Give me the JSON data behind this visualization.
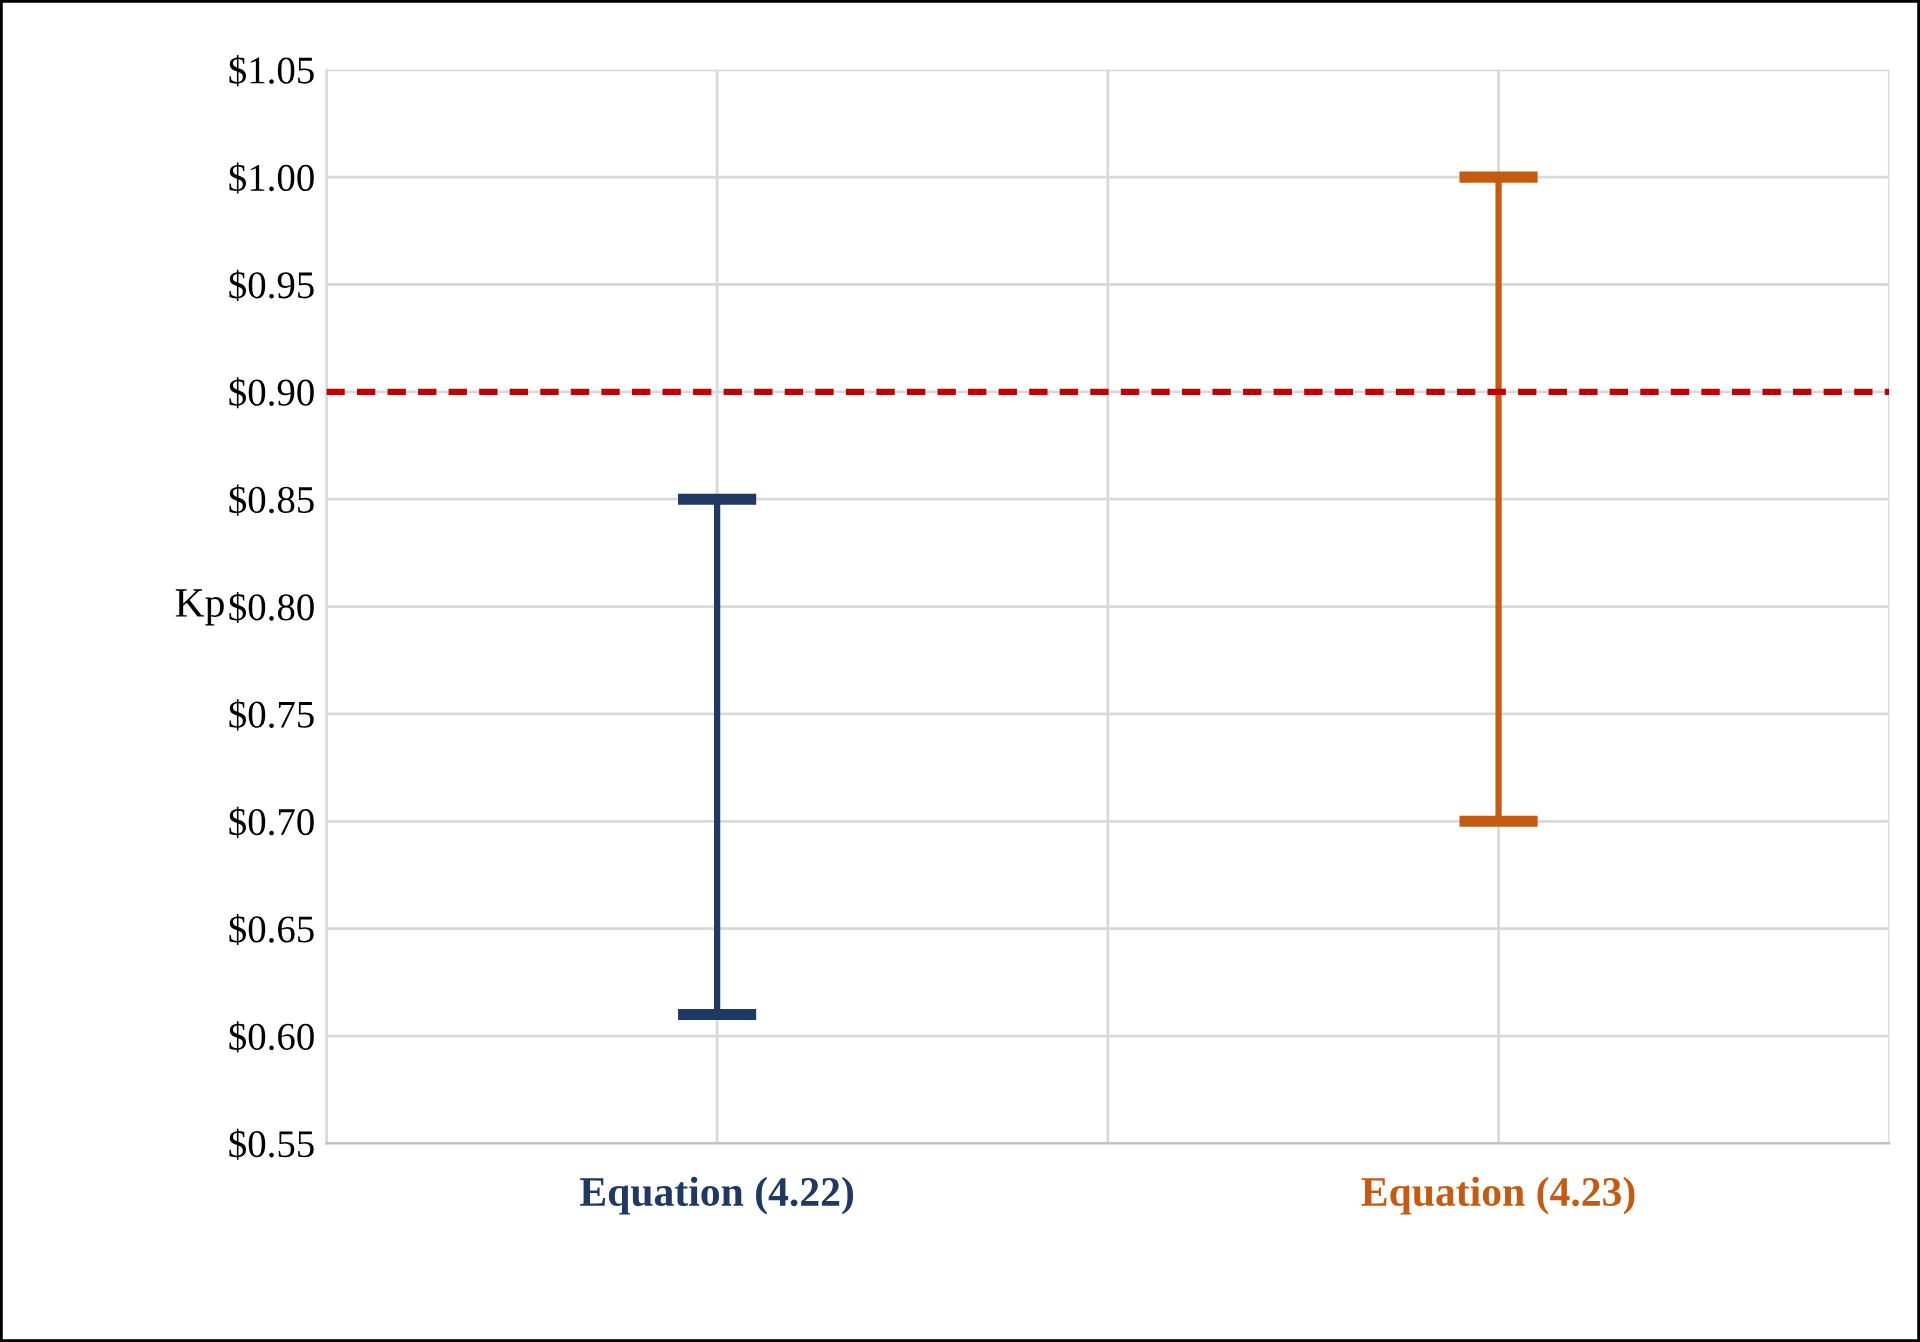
{
  "chart_data": {
    "type": "bar",
    "ylabel": "Kp",
    "categories": [
      "Equation (4.22)",
      "Equation (4.23)"
    ],
    "base": [
      0.61,
      0.7
    ],
    "values": [
      0.24,
      0.3
    ],
    "colors": [
      "#1f3864",
      "#c55a11"
    ],
    "ylim": [
      0.55,
      1.05
    ],
    "yticks": [
      {
        "value": 0.55,
        "label": "$0.55"
      },
      {
        "value": 0.6,
        "label": "$0.60"
      },
      {
        "value": 0.65,
        "label": "$0.65"
      },
      {
        "value": 0.7,
        "label": "$0.70"
      },
      {
        "value": 0.75,
        "label": "$0.75"
      },
      {
        "value": 0.8,
        "label": "$0.80"
      },
      {
        "value": 0.85,
        "label": "$0.85"
      },
      {
        "value": 0.9,
        "label": "$0.90"
      },
      {
        "value": 0.95,
        "label": "$0.95"
      },
      {
        "value": 1.0,
        "label": "$1.00"
      },
      {
        "value": 1.05,
        "label": "$1.05"
      }
    ],
    "ref_lines": [
      {
        "axis": "y",
        "value": 0.9,
        "color": "#c00000",
        "line_style": "dashed"
      }
    ],
    "grid": true
  }
}
